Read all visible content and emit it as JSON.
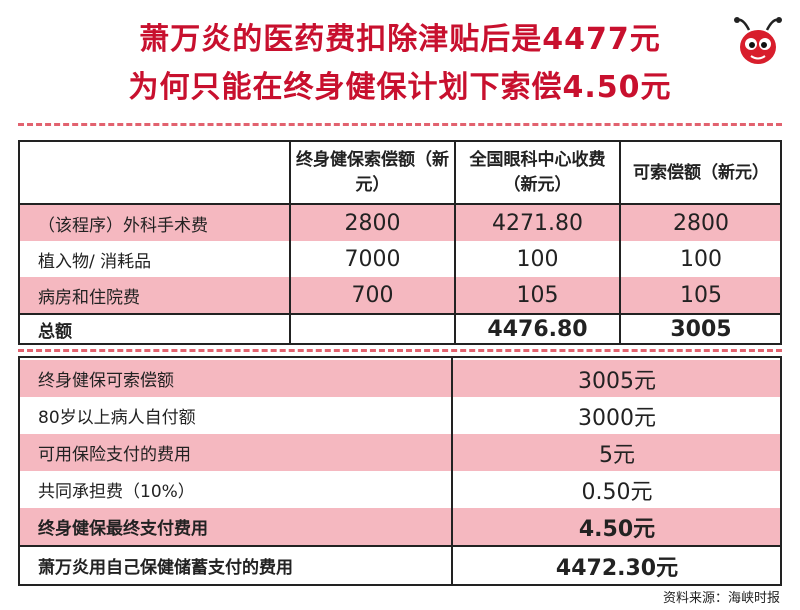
{
  "title": {
    "line1": "萧万炎的医药费扣除津贴后是4477元",
    "line2": "为何只能在终身健保计划下索偿4.50元"
  },
  "table1": {
    "headers": [
      "",
      "终身健保索偿额（新元）",
      "全国眼科中心收费（新元）",
      "可索偿额（新元）"
    ],
    "rows": [
      {
        "label": "（该程序）外科手术费",
        "a": "2800",
        "b": "4271.80",
        "c": "2800"
      },
      {
        "label": "植入物/ 消耗品",
        "a": "7000",
        "b": "100",
        "c": "100"
      },
      {
        "label": "病房和住院费",
        "a": "700",
        "b": "105",
        "c": "105"
      }
    ],
    "total": {
      "label": "总额",
      "a": "",
      "b": "4476.80",
      "c": "3005"
    }
  },
  "table2": {
    "rows": [
      {
        "label": "终身健保可索偿额",
        "value": "3005元"
      },
      {
        "label": "80岁以上病人自付额",
        "value": "3000元"
      },
      {
        "label": "可用保险支付的费用",
        "value": "5元"
      },
      {
        "label": "共同承担费（10%）",
        "value": "0.50元"
      },
      {
        "label": "终身健保最终支付费用",
        "value": "4.50元"
      },
      {
        "label": "萧万炎用自己保健储蓄支付的费用",
        "value": "4472.30元"
      }
    ]
  },
  "source": "资料来源：海峡时报",
  "colors": {
    "title": "#c8102e",
    "row_pink": "#f5b8c0",
    "dash": "#e2626f",
    "mascot": "#d81e2c"
  },
  "icons": {
    "mascot": "red-ant-mascot-icon"
  }
}
